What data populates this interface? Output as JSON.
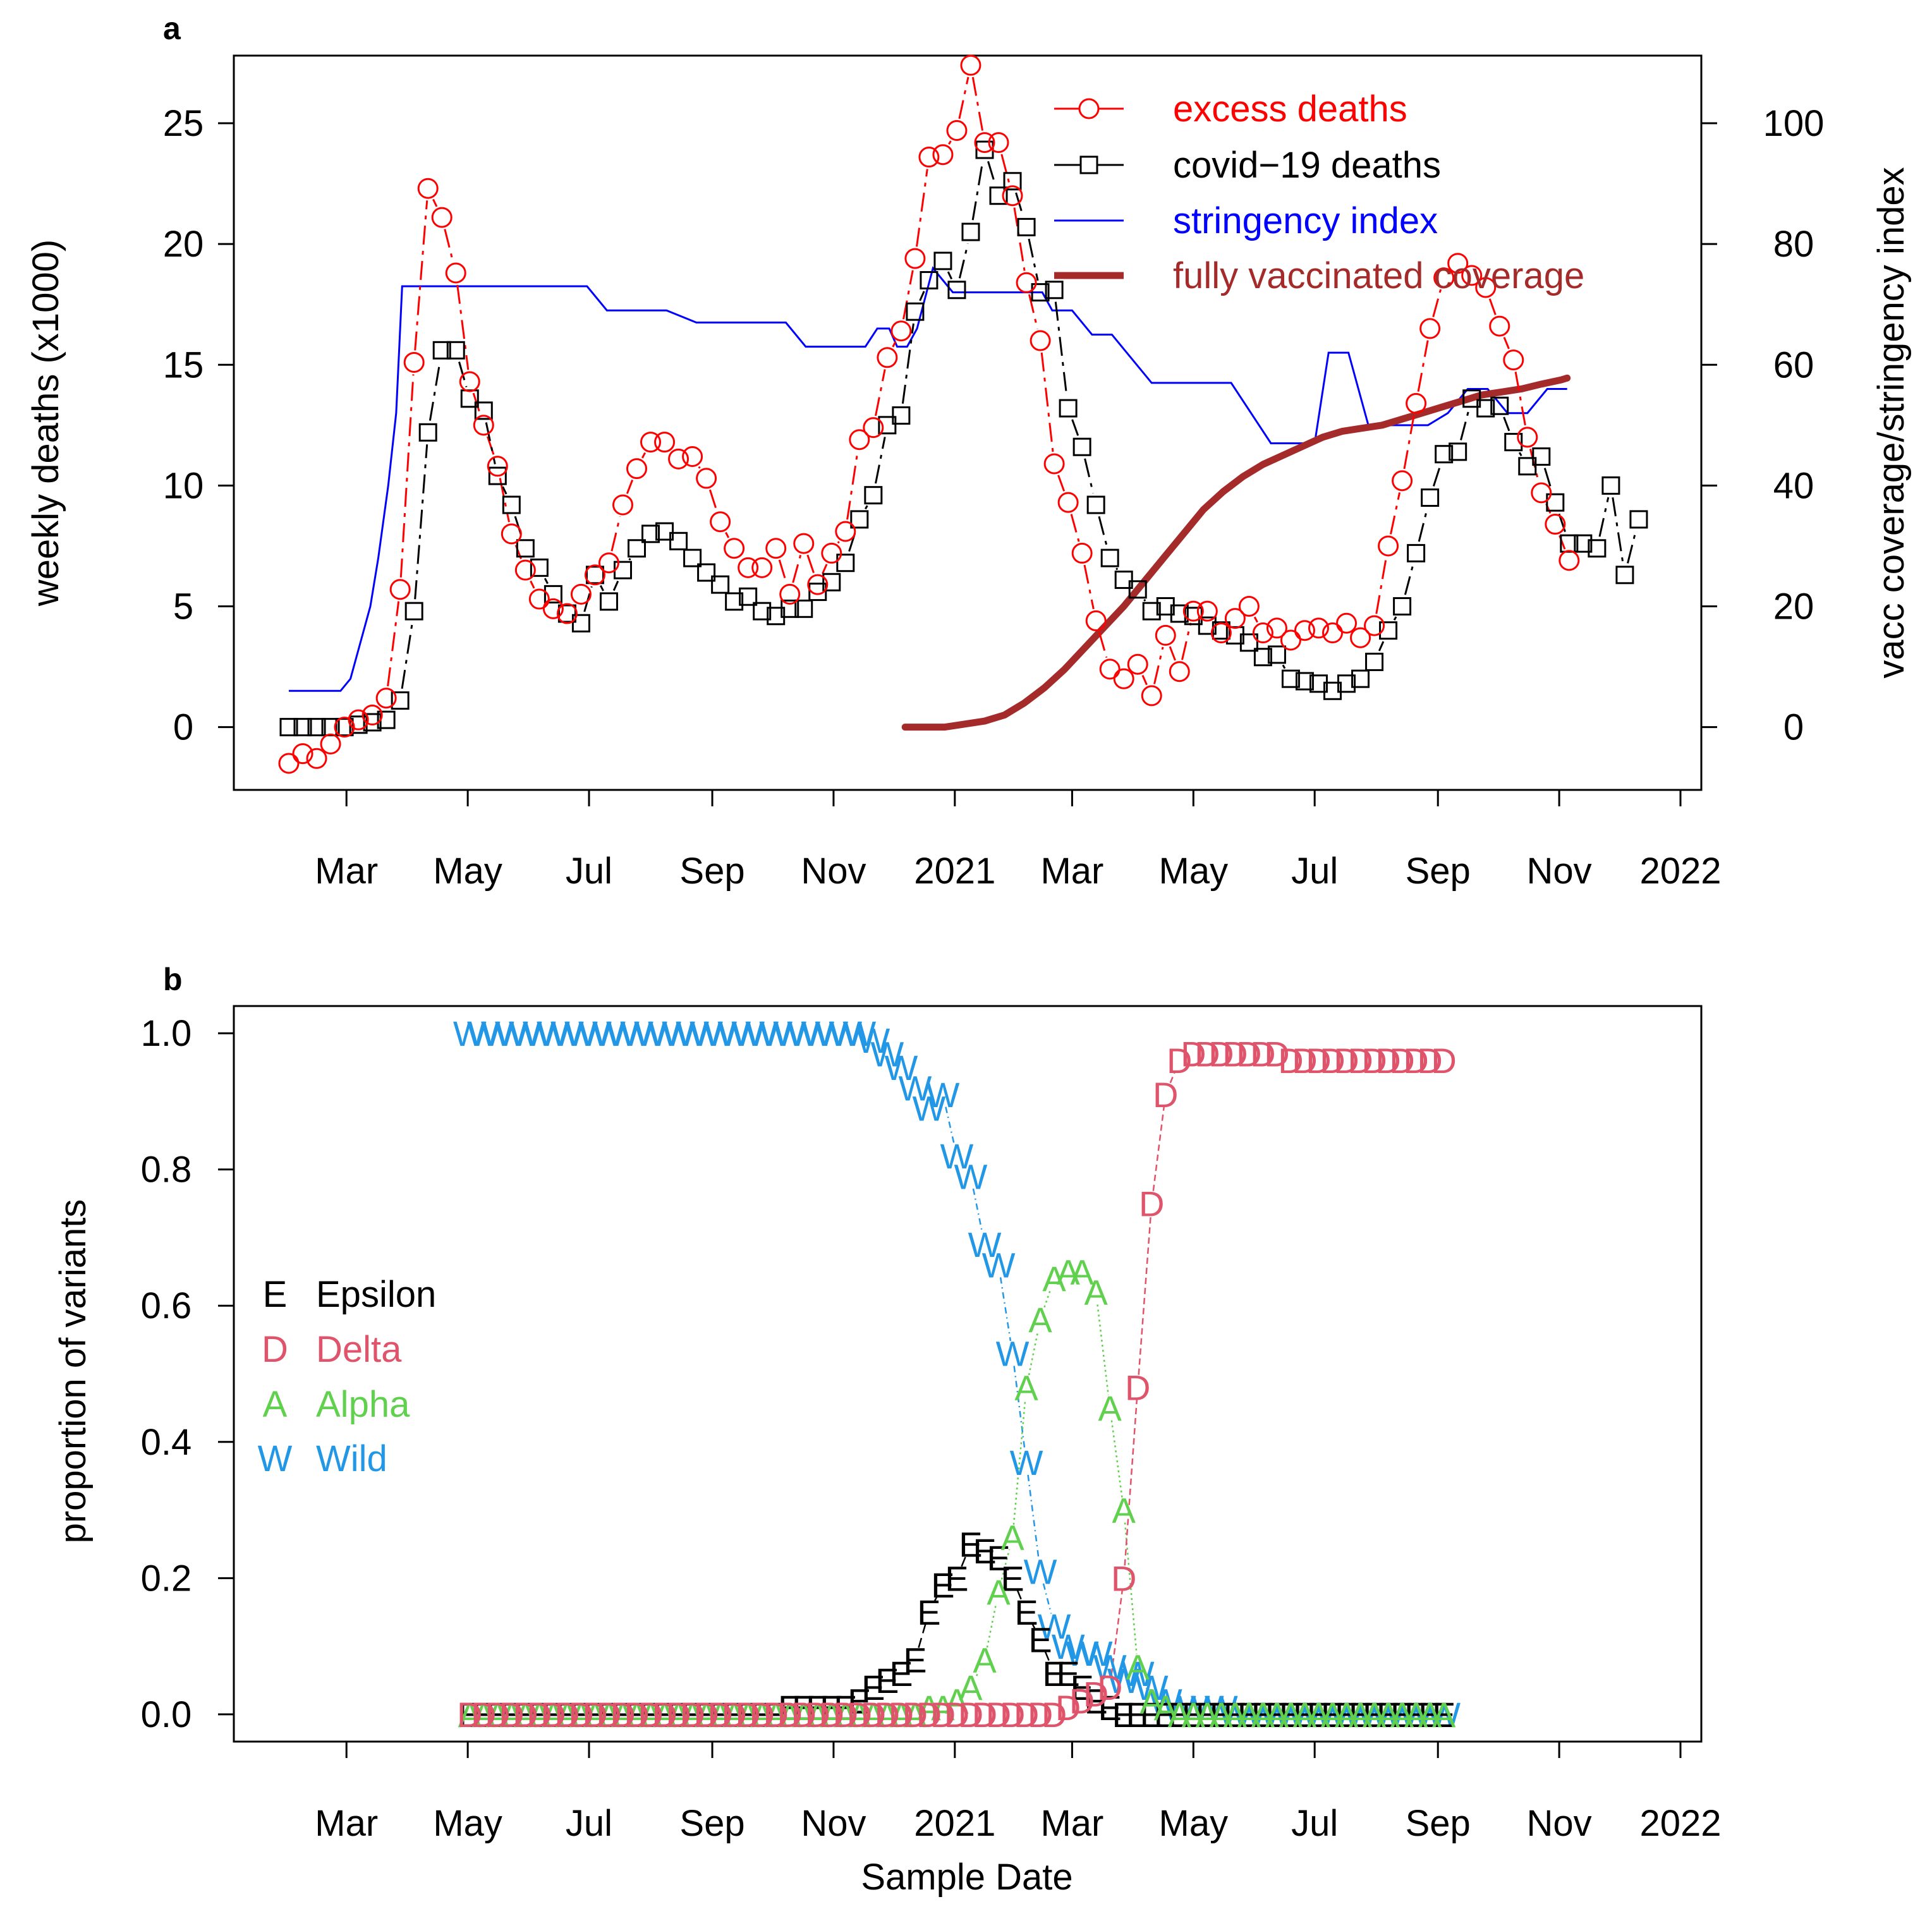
{
  "chart_data": [
    {
      "panel": "a",
      "type": "line",
      "ylabel": "weekly deaths (x1000)",
      "y2label": "vacc coverage/stringency index",
      "ylim": [
        -2.6,
        27.8
      ],
      "y2lim": [
        -10.4,
        111.2
      ],
      "yticks": [
        0,
        5,
        10,
        15,
        20,
        25
      ],
      "y2ticks": [
        0,
        20,
        40,
        60,
        80,
        100
      ],
      "xlim": [
        0,
        700
      ],
      "month_ticks": [
        {
          "day": 29,
          "label": "Mar"
        },
        {
          "day": 90,
          "label": "May"
        },
        {
          "day": 151,
          "label": "Jul"
        },
        {
          "day": 213,
          "label": "Sep"
        },
        {
          "day": 274,
          "label": "Nov"
        },
        {
          "day": 335,
          "label": "2021"
        },
        {
          "day": 394,
          "label": "Mar"
        },
        {
          "day": 455,
          "label": "May"
        },
        {
          "day": 516,
          "label": "Jul"
        },
        {
          "day": 578,
          "label": "Sep"
        },
        {
          "day": 639,
          "label": "Nov"
        },
        {
          "day": 700,
          "label": "2022"
        }
      ],
      "legend": {
        "position": "top-right",
        "entries": [
          {
            "label": "excess deaths",
            "color": "#ff0000"
          },
          {
            "label": "covid−19 deaths",
            "color": "#000000"
          },
          {
            "label": "stringency index",
            "color": "#0000ff"
          },
          {
            "label": "fully vaccinated coverage",
            "color": "#a52a2a"
          }
        ]
      },
      "series": [
        {
          "name": "excess deaths",
          "axis": "left",
          "color": "#ff0000",
          "marker": "circle",
          "x_start": 0,
          "x_step": 7,
          "values": [
            -1.5,
            -1.1,
            -1.3,
            -0.7,
            0.0,
            0.3,
            0.5,
            1.2,
            5.7,
            15.1,
            22.3,
            21.1,
            18.8,
            14.3,
            12.5,
            10.8,
            8.0,
            6.5,
            5.3,
            4.9,
            4.7,
            5.5,
            6.3,
            6.8,
            9.2,
            10.7,
            11.8,
            11.8,
            11.1,
            11.2,
            10.3,
            8.5,
            7.4,
            6.6,
            6.6,
            7.4,
            5.5,
            7.6,
            5.9,
            7.2,
            8.1,
            11.9,
            12.4,
            15.3,
            16.4,
            19.4,
            23.6,
            23.7,
            24.7,
            27.4,
            24.2,
            24.2,
            22.0,
            18.4,
            16.0,
            10.9,
            9.3,
            7.2,
            4.4,
            2.4,
            2.0,
            2.6,
            1.3,
            3.8,
            2.3,
            4.8,
            4.8,
            3.9,
            4.5,
            5.0,
            3.9,
            4.1,
            3.6,
            4.0,
            4.1,
            3.9,
            4.3,
            3.7,
            4.2,
            7.5,
            10.2,
            13.4,
            16.5,
            18.6,
            19.2,
            18.7,
            18.2,
            16.6,
            15.2,
            12.0,
            9.7,
            8.4,
            6.9
          ]
        },
        {
          "name": "covid−19 deaths",
          "axis": "left",
          "color": "#000000",
          "marker": "square",
          "x_start": 0,
          "x_step": 7,
          "values": [
            0.0,
            0.0,
            0.0,
            0.0,
            0.0,
            0.1,
            0.2,
            0.3,
            1.1,
            4.8,
            12.2,
            15.6,
            15.6,
            13.6,
            13.1,
            10.4,
            9.2,
            7.4,
            6.6,
            5.5,
            4.7,
            4.3,
            6.3,
            5.2,
            6.5,
            7.4,
            8.0,
            8.1,
            7.7,
            7.0,
            6.4,
            5.9,
            5.2,
            5.4,
            4.8,
            4.6,
            4.9,
            4.9,
            5.6,
            6.0,
            6.8,
            8.6,
            9.6,
            12.5,
            12.9,
            17.2,
            18.5,
            19.3,
            18.1,
            20.5,
            23.9,
            22.0,
            22.6,
            20.7,
            18.0,
            18.1,
            13.2,
            11.6,
            9.2,
            7.0,
            6.1,
            5.7,
            4.8,
            5.0,
            4.7,
            4.6,
            4.2,
            4.0,
            3.8,
            3.5,
            2.9,
            3.0,
            2.0,
            1.9,
            1.8,
            1.5,
            1.8,
            2.0,
            2.7,
            4.0,
            5.0,
            7.2,
            9.5,
            11.3,
            11.4,
            13.6,
            13.2,
            13.3,
            11.8,
            10.8,
            11.2,
            9.3,
            7.6,
            7.6,
            7.4,
            10.0,
            6.3,
            8.6
          ]
        },
        {
          "name": "stringency index",
          "axis": "right",
          "color": "#0000ff",
          "marker": "none",
          "x": [
            0,
            26,
            31,
            36,
            41,
            45,
            50,
            54,
            57,
            65,
            70,
            75,
            80,
            85,
            90,
            105,
            120,
            135,
            140,
            150,
            160,
            165,
            180,
            190,
            205,
            220,
            230,
            240,
            250,
            260,
            270,
            275,
            285,
            290,
            296,
            302,
            306,
            311,
            316,
            324,
            334,
            344,
            354,
            364,
            374,
            379,
            384,
            394,
            404,
            414,
            424,
            434,
            444,
            454,
            464,
            474,
            484,
            494,
            502,
            507,
            512,
            516,
            523,
            533,
            543,
            553,
            563,
            573,
            578,
            583,
            593,
            603,
            613,
            623,
            633,
            643
          ],
          "values": [
            6,
            6,
            8,
            14,
            20,
            28,
            40,
            52,
            73,
            73,
            73,
            73,
            73,
            73,
            73,
            73,
            73,
            73,
            73,
            73,
            69,
            69,
            69,
            69,
            67,
            67,
            67,
            67,
            67,
            63,
            63,
            63,
            63,
            63,
            66,
            66,
            63,
            63,
            66,
            76,
            72,
            72,
            72,
            72,
            72,
            72,
            69,
            69,
            65,
            65,
            61,
            57,
            57,
            57,
            57,
            57,
            52,
            47,
            47,
            47,
            47,
            47,
            62,
            62,
            50,
            50,
            50,
            50,
            51,
            52,
            56,
            56,
            52,
            52,
            56,
            56
          ]
        },
        {
          "name": "fully vaccinated coverage",
          "axis": "right",
          "color": "#a52a2a",
          "marker": "none",
          "x": [
            310,
            320,
            330,
            340,
            350,
            360,
            370,
            380,
            390,
            400,
            410,
            420,
            430,
            440,
            450,
            460,
            470,
            480,
            490,
            500,
            510,
            520,
            530,
            540,
            550,
            560,
            570,
            580,
            590,
            600,
            610,
            620,
            630,
            640,
            643
          ],
          "values": [
            0,
            0,
            0,
            0.5,
            1,
            2,
            4,
            6.5,
            9.5,
            13,
            16.5,
            20,
            24,
            28,
            32,
            36,
            39,
            41.5,
            43.5,
            45,
            46.5,
            48,
            49,
            49.5,
            50,
            51,
            52,
            53,
            54,
            55,
            55.5,
            56,
            56.8,
            57.5,
            57.8
          ]
        }
      ]
    },
    {
      "panel": "b",
      "type": "line",
      "xlabel": "Sample Date",
      "ylabel": "proportion of variants",
      "ylim": [
        -0.04,
        1.04
      ],
      "yticks": [
        "0.0",
        "0.2",
        "0.4",
        "0.6",
        "0.8",
        "1.0"
      ],
      "xlim": [
        0,
        700
      ],
      "month_ticks": [
        {
          "day": 29,
          "label": "Mar"
        },
        {
          "day": 90,
          "label": "May"
        },
        {
          "day": 151,
          "label": "Jul"
        },
        {
          "day": 213,
          "label": "Sep"
        },
        {
          "day": 274,
          "label": "Nov"
        },
        {
          "day": 335,
          "label": "2021"
        },
        {
          "day": 394,
          "label": "Mar"
        },
        {
          "day": 455,
          "label": "May"
        },
        {
          "day": 516,
          "label": "Jul"
        },
        {
          "day": 578,
          "label": "Sep"
        },
        {
          "day": 639,
          "label": "Nov"
        },
        {
          "day": 700,
          "label": "2022"
        }
      ],
      "legend": {
        "position": "middle-left",
        "entries": [
          {
            "symbol": "E",
            "label": "Epsilon",
            "color": "#000000"
          },
          {
            "symbol": "D",
            "label": "Delta",
            "color": "#df536b"
          },
          {
            "symbol": "A",
            "label": "Alpha",
            "color": "#61d04f"
          },
          {
            "symbol": "W",
            "label": "Wild",
            "color": "#2297e6"
          }
        ]
      },
      "series": [
        {
          "name": "Wild",
          "symbol": "W",
          "color": "#2297e6",
          "x_start": 91,
          "x_step": 7,
          "values": [
            1.0,
            1.0,
            1.0,
            1.0,
            1.0,
            1.0,
            1.0,
            1.0,
            1.0,
            1.0,
            1.0,
            1.0,
            1.0,
            1.0,
            1.0,
            1.0,
            1.0,
            1.0,
            1.0,
            1.0,
            1.0,
            1.0,
            1.0,
            1.0,
            1.0,
            1.0,
            1.0,
            1.0,
            1.0,
            0.99,
            0.97,
            0.95,
            0.92,
            0.89,
            0.91,
            0.82,
            0.79,
            0.69,
            0.66,
            0.53,
            0.37,
            0.21,
            0.13,
            0.1,
            0.09,
            0.09,
            0.07,
            0.05,
            0.06,
            0.04,
            0.02,
            0.01,
            0.01,
            0.01,
            0.01,
            0.0,
            0.0,
            0.0,
            0.0,
            0.0,
            0.0,
            0.0,
            0.0,
            0.0,
            0.0,
            0.0,
            0.0,
            0.0,
            0.0,
            0.0,
            0.0
          ]
        },
        {
          "name": "Epsilon",
          "symbol": "E",
          "color": "#000000",
          "x_start": 91,
          "x_step": 7,
          "values": [
            0.0,
            0.0,
            0.0,
            0.0,
            0.0,
            0.0,
            0.0,
            0.0,
            0.0,
            0.0,
            0.0,
            0.0,
            0.0,
            0.0,
            0.0,
            0.0,
            0.0,
            0.0,
            0.0,
            0.0,
            0.0,
            0.0,
            0.0,
            0.01,
            0.01,
            0.01,
            0.01,
            0.01,
            0.02,
            0.04,
            0.05,
            0.06,
            0.08,
            0.15,
            0.19,
            0.2,
            0.25,
            0.24,
            0.23,
            0.2,
            0.15,
            0.11,
            0.06,
            0.06,
            0.04,
            0.02,
            0.01,
            0.0,
            0.0,
            0.0,
            0.0,
            0.0,
            0.0,
            0.0,
            0.0,
            0.0,
            0.0,
            0.0,
            0.0,
            0.0,
            0.0,
            0.0,
            0.0,
            0.0,
            0.0,
            0.0,
            0.0,
            0.0,
            0.0,
            0.0,
            0.0
          ]
        },
        {
          "name": "Alpha",
          "symbol": "A",
          "color": "#61d04f",
          "x_start": 91,
          "x_step": 7,
          "values": [
            0.0,
            0.0,
            0.0,
            0.0,
            0.0,
            0.0,
            0.0,
            0.0,
            0.0,
            0.0,
            0.0,
            0.0,
            0.0,
            0.0,
            0.0,
            0.0,
            0.0,
            0.0,
            0.0,
            0.0,
            0.0,
            0.0,
            0.0,
            0.0,
            0.0,
            0.0,
            0.0,
            0.0,
            0.0,
            0.0,
            0.0,
            0.0,
            0.0,
            0.01,
            0.01,
            0.02,
            0.04,
            0.08,
            0.18,
            0.26,
            0.48,
            0.58,
            0.64,
            0.65,
            0.65,
            0.62,
            0.45,
            0.3,
            0.07,
            0.02,
            0.01,
            0.0,
            0.0,
            0.0,
            0.0,
            0.0,
            0.0,
            0.0,
            0.0,
            0.0,
            0.0,
            0.0,
            0.0,
            0.0,
            0.0,
            0.0,
            0.0,
            0.0,
            0.0,
            0.0,
            0.0
          ]
        },
        {
          "name": "Delta",
          "symbol": "D",
          "color": "#df536b",
          "x_start": 91,
          "x_step": 7,
          "values": [
            0.0,
            0.0,
            0.0,
            0.0,
            0.0,
            0.0,
            0.0,
            0.0,
            0.0,
            0.0,
            0.0,
            0.0,
            0.0,
            0.0,
            0.0,
            0.0,
            0.0,
            0.0,
            0.0,
            0.0,
            0.0,
            0.0,
            0.0,
            0.0,
            0.0,
            0.0,
            0.0,
            0.0,
            0.0,
            0.0,
            0.0,
            0.0,
            0.0,
            0.0,
            0.0,
            0.0,
            0.0,
            0.0,
            0.0,
            0.0,
            0.0,
            0.0,
            0.0,
            0.01,
            0.02,
            0.03,
            0.04,
            0.2,
            0.48,
            0.75,
            0.91,
            0.96,
            0.97,
            0.97,
            0.97,
            0.97,
            0.97,
            0.97,
            0.97,
            0.96,
            0.96,
            0.96,
            0.96,
            0.96,
            0.96,
            0.96,
            0.96,
            0.96,
            0.96,
            0.96,
            0.96
          ]
        }
      ]
    }
  ]
}
